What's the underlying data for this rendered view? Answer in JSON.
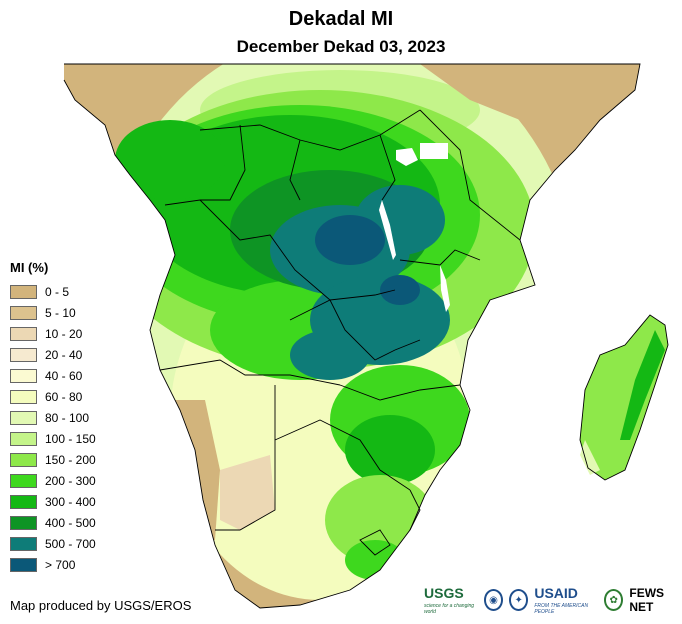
{
  "header": {
    "title": "Dekadal MI",
    "subtitle": "December Dekad 03, 2023"
  },
  "legend": {
    "title": "MI (%)",
    "items": [
      {
        "label": "0 - 5",
        "color": "#d2b47c"
      },
      {
        "label": "5 - 10",
        "color": "#dcc28e"
      },
      {
        "label": "10 - 20",
        "color": "#ecd8b4"
      },
      {
        "label": "20 - 40",
        "color": "#f6ead0"
      },
      {
        "label": "40 - 60",
        "color": "#fbfad2"
      },
      {
        "label": "60 - 80",
        "color": "#f4fcbe"
      },
      {
        "label": "80 - 100",
        "color": "#e2f9b4"
      },
      {
        "label": "100 - 150",
        "color": "#c4f48a"
      },
      {
        "label": "150 - 200",
        "color": "#8ee84a"
      },
      {
        "label": "200 - 300",
        "color": "#3ed81e"
      },
      {
        "label": "300 - 400",
        "color": "#14b814"
      },
      {
        "label": "400 - 500",
        "color": "#0e9424"
      },
      {
        "label": "500 - 700",
        "color": "#0e7c78"
      },
      {
        "label": "> 700",
        "color": "#0b5878"
      }
    ]
  },
  "footer": {
    "credit": "Map produced by USGS/EROS",
    "logos": {
      "usgs": "USGS",
      "usgs_tagline": "science for a changing world",
      "usaid": "USAID",
      "usaid_tagline": "FROM THE AMERICAN PEOPLE",
      "fews": "FEWS NET"
    }
  },
  "colors": {
    "land_dry": "#d2b47c",
    "ocean": "#ffffff",
    "border": "#000000"
  }
}
